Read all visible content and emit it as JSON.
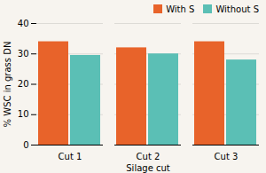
{
  "chart_data": {
    "type": "bar",
    "categories": [
      "Cut 1",
      "Cut 2",
      "Cut 3"
    ],
    "series": [
      {
        "name": "With S",
        "color": "#E8632A",
        "values": [
          34.0,
          32.0,
          34.0
        ]
      },
      {
        "name": "Without S",
        "color": "#5BBFB5",
        "values": [
          29.5,
          30.0,
          28.0
        ]
      }
    ],
    "xlabel": "Silage cut",
    "ylabel": "% WSC in grass DN",
    "ylim": [
      0,
      40
    ],
    "yticks": [
      0,
      10,
      20,
      30,
      40
    ],
    "grid": true,
    "legend": "upper right"
  }
}
